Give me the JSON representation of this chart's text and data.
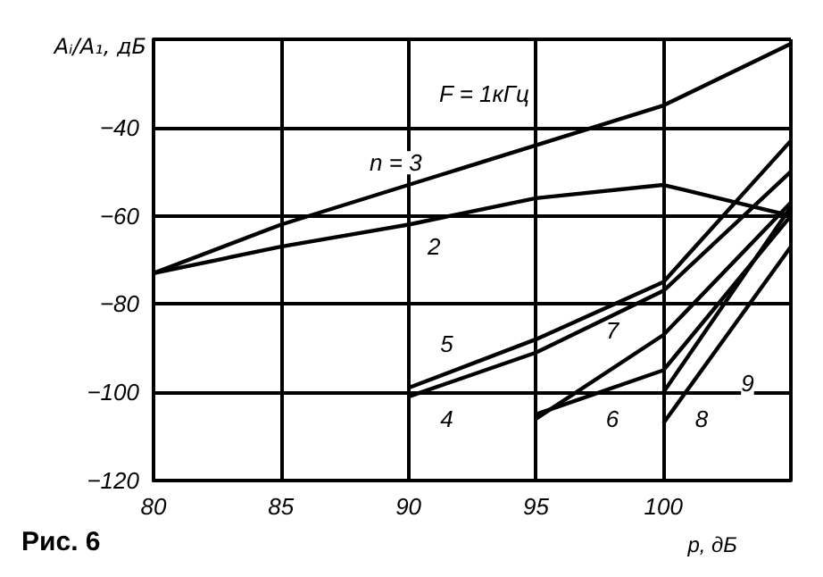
{
  "chart_data": {
    "type": "line",
    "xlabel": "p, дБ",
    "ylabel": "Aᵢ/A₁, дБ",
    "xlim": [
      80,
      105
    ],
    "xticks": [
      80,
      85,
      90,
      95,
      100,
      {
        "value": 105,
        "label": null
      }
    ],
    "ylim": [
      -120,
      -20
    ],
    "yticks": [
      -120,
      -100,
      -80,
      -60,
      -40,
      {
        "value": -20,
        "label": null
      }
    ],
    "grid": true,
    "marker": "none",
    "line_style": "solid",
    "series": [
      {
        "color": "#000000",
        "x": [
          80,
          85,
          90,
          95,
          100,
          105
        ],
        "values": [
          -73,
          -62,
          -53,
          -44,
          -35,
          -21
        ]
      },
      {
        "color": "#000000",
        "x": [
          80,
          85,
          90,
          95,
          100,
          105
        ],
        "values": [
          -73,
          -67,
          -62,
          -56,
          -53,
          -60
        ]
      },
      {
        "color": "#000000",
        "x": [
          90,
          95,
          100,
          105
        ],
        "values": [
          -99,
          -88,
          -75,
          -43
        ]
      },
      {
        "color": "#000000",
        "x": [
          90,
          95,
          100,
          105
        ],
        "values": [
          -101,
          -91,
          -77,
          -50
        ]
      },
      {
        "color": "#000000",
        "x": [
          95,
          100,
          105
        ],
        "values": [
          -106,
          -87,
          -57
        ]
      },
      {
        "color": "#000000",
        "x": [
          95,
          100,
          105
        ],
        "values": [
          -105,
          -95,
          -60
        ]
      },
      {
        "color": "#000000",
        "x": [
          100,
          105
        ],
        "values": [
          -107,
          -67
        ]
      },
      {
        "color": "#000000",
        "x": [
          100,
          105
        ],
        "values": [
          -100,
          -58
        ]
      }
    ],
    "annotations": [
      "F = 1кГц",
      "Рис. 6",
      {
        "text": "n = 3",
        "x": 89.5,
        "y": -48
      },
      {
        "text": "2",
        "x": 91,
        "y": -67
      },
      {
        "text": "5",
        "x": 91.5,
        "y": -89
      },
      {
        "text": "4",
        "x": 91.5,
        "y": -106
      },
      {
        "text": "7",
        "x": 98,
        "y": -86
      },
      {
        "text": "6",
        "x": 98,
        "y": -106
      },
      {
        "text": "8",
        "x": 101.5,
        "y": -106
      },
      {
        "text": "9",
        "x": 103.3,
        "y": -98
      }
    ]
  }
}
